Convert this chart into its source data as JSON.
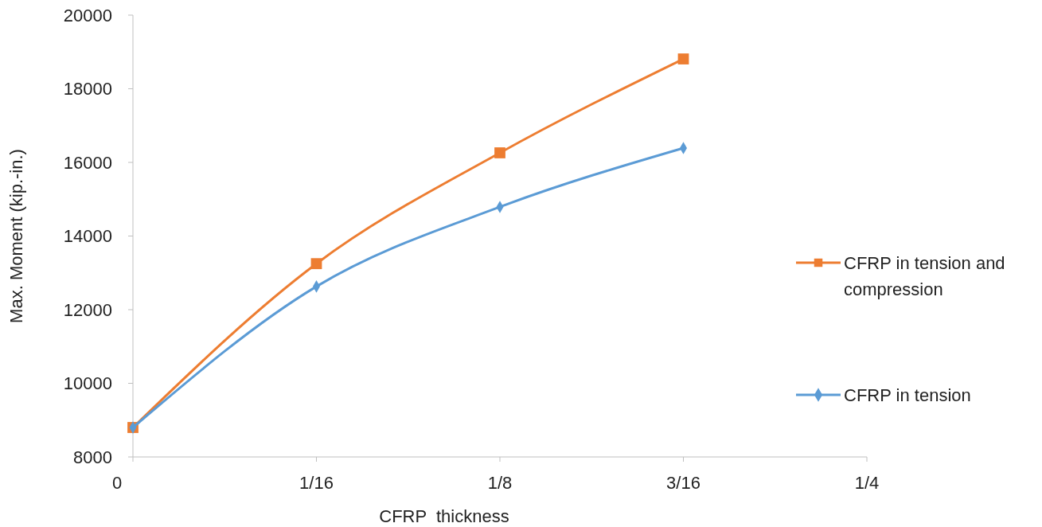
{
  "chart_data": {
    "type": "line",
    "xlabel": "CFRP  thickness",
    "ylabel": "Max. Moment (kip.-in.)",
    "x": [
      0,
      0.0625,
      0.125,
      0.1875
    ],
    "xlim": [
      0,
      0.25
    ],
    "xticks": [
      0,
      {
        "value": 0.0625,
        "label": "1/16"
      },
      {
        "value": 0.125,
        "label": "1/8"
      },
      {
        "value": 0.1875,
        "label": "3/16"
      },
      {
        "value": 0.25,
        "label": "1/4"
      }
    ],
    "ylim": [
      8000,
      20000
    ],
    "yticks": [
      8000,
      10000,
      12000,
      14000,
      16000,
      18000,
      20000
    ],
    "grid": false,
    "legend": "right",
    "line_style": "solid",
    "series": [
      {
        "name": "CFRP in tension and compression",
        "color": "#ed7d31",
        "marker": "square",
        "values": [
          8800,
          13250,
          16260,
          18810
        ]
      },
      {
        "name": "CFRP in tension",
        "color": "#5b9bd5",
        "marker": "diamond",
        "values": [
          8800,
          12630,
          14790,
          16390
        ]
      }
    ]
  }
}
